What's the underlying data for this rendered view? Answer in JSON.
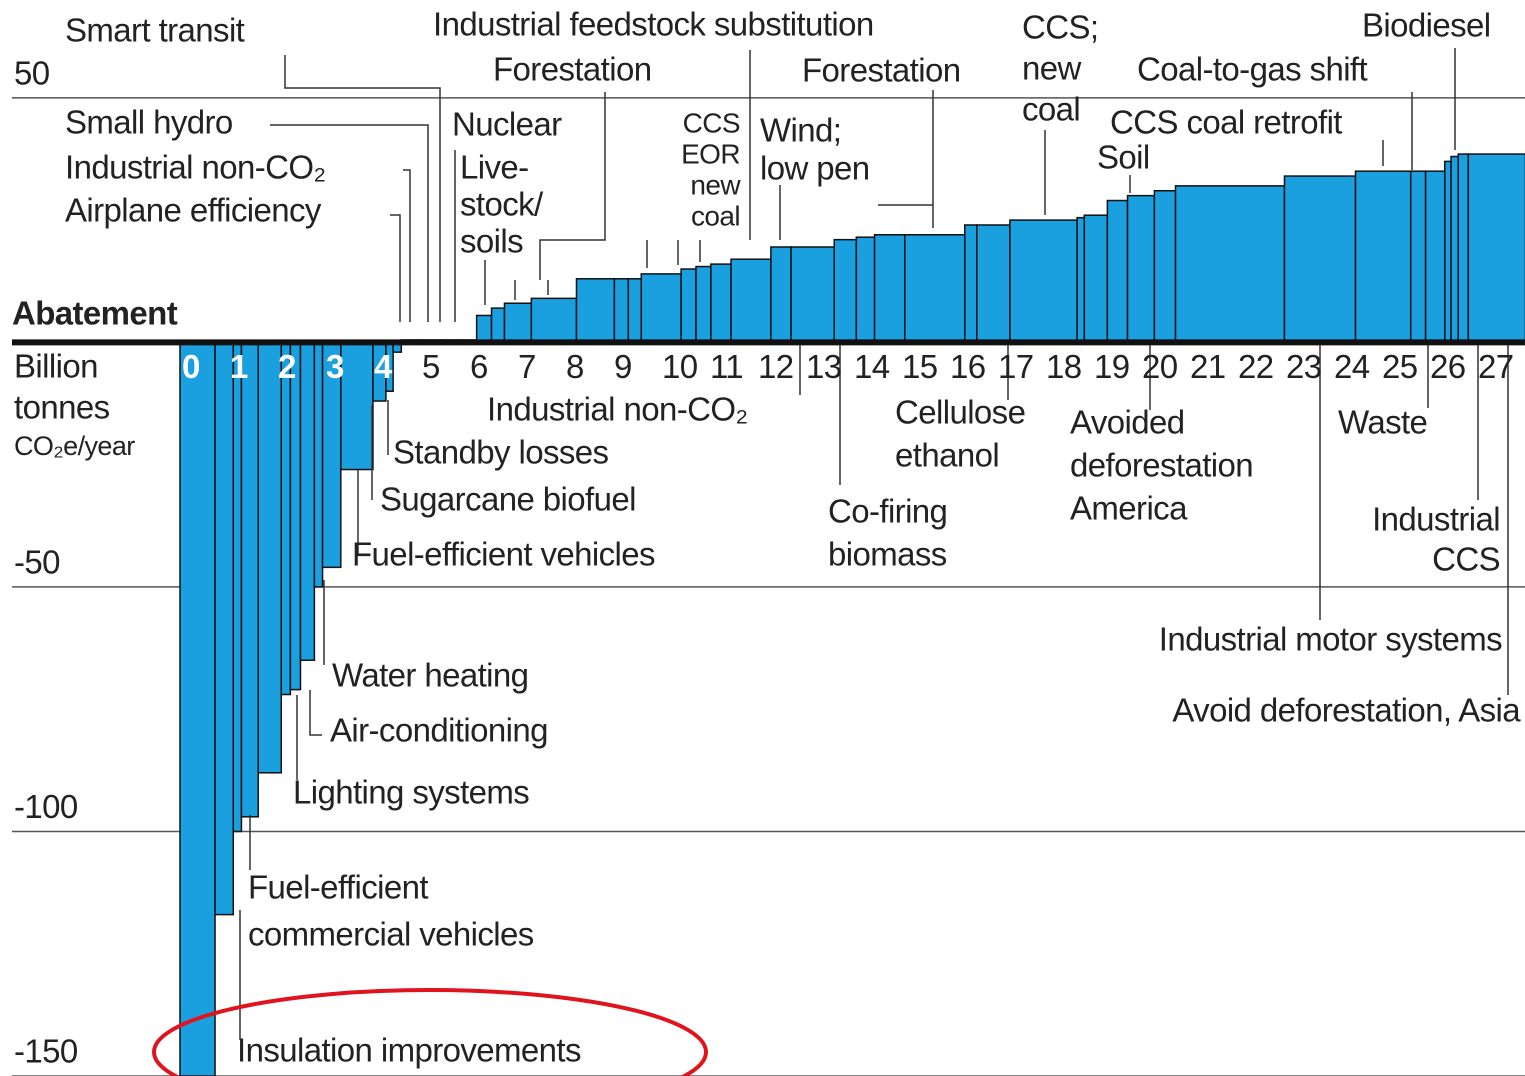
{
  "chart_data": {
    "type": "bar",
    "x_label": "Abatement",
    "x_unit": [
      "Billion",
      "tonnes",
      "CO₂e/year"
    ],
    "xlim": [
      0,
      28
    ],
    "xticks": [
      0,
      1,
      2,
      3,
      4,
      5,
      6,
      7,
      8,
      9,
      10,
      11,
      12,
      13,
      14,
      15,
      16,
      17,
      18,
      19,
      20,
      21,
      22,
      23,
      24,
      25,
      26,
      27
    ],
    "ylim": [
      -150,
      70
    ],
    "yticks": [
      50,
      -50,
      -100,
      -150
    ],
    "grid": true,
    "color": "#1a9fdf",
    "widths": [
      0.73,
      0.38,
      0.17,
      0.35,
      0.48,
      0.19,
      0.21,
      0.29,
      0.17,
      0.38,
      0.67,
      0.27,
      0.15,
      0.17,
      0.42,
      0.42,
      0.31,
      0.42,
      0.31,
      0.27,
      0.56,
      0.94,
      0.79,
      0.29,
      0.27,
      0.83,
      0.31,
      0.31,
      0.42,
      0.83,
      0.42,
      0.9,
      0.46,
      0.38,
      0.63,
      1.25,
      0.25,
      0.69,
      1.4,
      0.15,
      0.48,
      0.42,
      0.56,
      0.44,
      2.27,
      1.48,
      1.15,
      0.31,
      0.4,
      0.13,
      0.15,
      0.21,
      1.19
    ],
    "values": [
      -150,
      -117,
      -100,
      -97,
      -88,
      -72,
      -71,
      -65,
      -50,
      -46,
      -26,
      -12,
      -10,
      -2,
      0.5,
      0.5,
      0.5,
      0.5,
      5.5,
      7,
      8,
      9,
      13,
      13,
      13,
      14,
      15,
      15.5,
      16,
      17,
      19.5,
      19.5,
      21,
      21.5,
      22,
      22,
      24,
      24,
      25,
      25.5,
      26,
      29,
      30,
      31,
      32,
      34,
      35,
      35,
      35,
      37,
      38,
      38.5,
      38.5
    ],
    "annotations": [
      [
        "Smart transit"
      ],
      [
        "Industrial feedstock substitution"
      ],
      [
        "Forestation"
      ],
      [
        "CCS;",
        "new",
        "coal"
      ],
      [
        "Biodiesel"
      ],
      [
        "Forestation"
      ],
      [
        "Coal-to-gas shift"
      ],
      [
        "Small hydro"
      ],
      [
        "Industrial non-CO₂"
      ],
      [
        "Airplane efficiency"
      ],
      [
        "Nuclear"
      ],
      [
        "Live-",
        "stock/",
        "soils"
      ],
      [
        "CCS",
        "EOR",
        "new",
        "coal"
      ],
      [
        "Wind;",
        "low pen"
      ],
      [
        "CCS coal retrofit"
      ],
      [
        "Soil"
      ],
      [
        "Industrial non-CO₂"
      ],
      [
        "Standby losses"
      ],
      [
        "Sugarcane biofuel"
      ],
      [
        "Fuel-efficient vehicles"
      ],
      [
        "Cellulose",
        "ethanol"
      ],
      [
        "Avoided",
        "deforestation",
        "America"
      ],
      [
        "Waste"
      ],
      [
        "Co-firing",
        "biomass"
      ],
      [
        "Industrial",
        "CCS"
      ],
      [
        "Industrial motor systems"
      ],
      [
        "Avoid deforestation, Asia"
      ],
      [
        "Water heating"
      ],
      [
        "Air-conditioning"
      ],
      [
        "Lighting systems"
      ],
      [
        "Fuel-efficient",
        "commercial vehicles"
      ],
      [
        "Insulation improvements"
      ]
    ]
  }
}
